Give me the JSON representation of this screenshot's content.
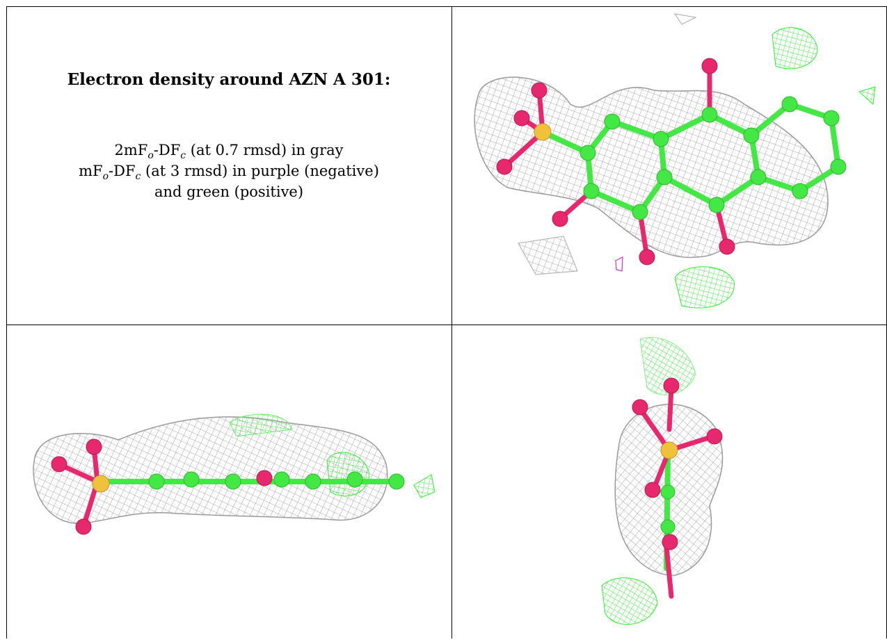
{
  "caption": {
    "title": "Electron density around AZN A 301:",
    "line1": {
      "pre": "2mF",
      "sub1": "o",
      "mid": "-DF",
      "sub2": "c",
      "post": " (at 0.7 rmsd) in gray"
    },
    "line2": {
      "pre": "mF",
      "sub1": "o",
      "mid": "-DF",
      "sub2": "c",
      "post": " (at 3 rmsd) in purple (negative)"
    },
    "line3": "and green (positive)"
  },
  "legend_colors": {
    "map_2fofc": "#8c8c8c",
    "map_fofc_negative": "#cc33cc",
    "map_fofc_positive": "#33ee33",
    "carbon": "#44e844",
    "oxygen": "#e8286e",
    "sulfur": "#f0c23c"
  },
  "panels": [
    {
      "name": "top-right-view",
      "view": "face-on"
    },
    {
      "name": "bottom-left-view",
      "view": "edge-on"
    },
    {
      "name": "bottom-right-view",
      "view": "end-on"
    }
  ]
}
